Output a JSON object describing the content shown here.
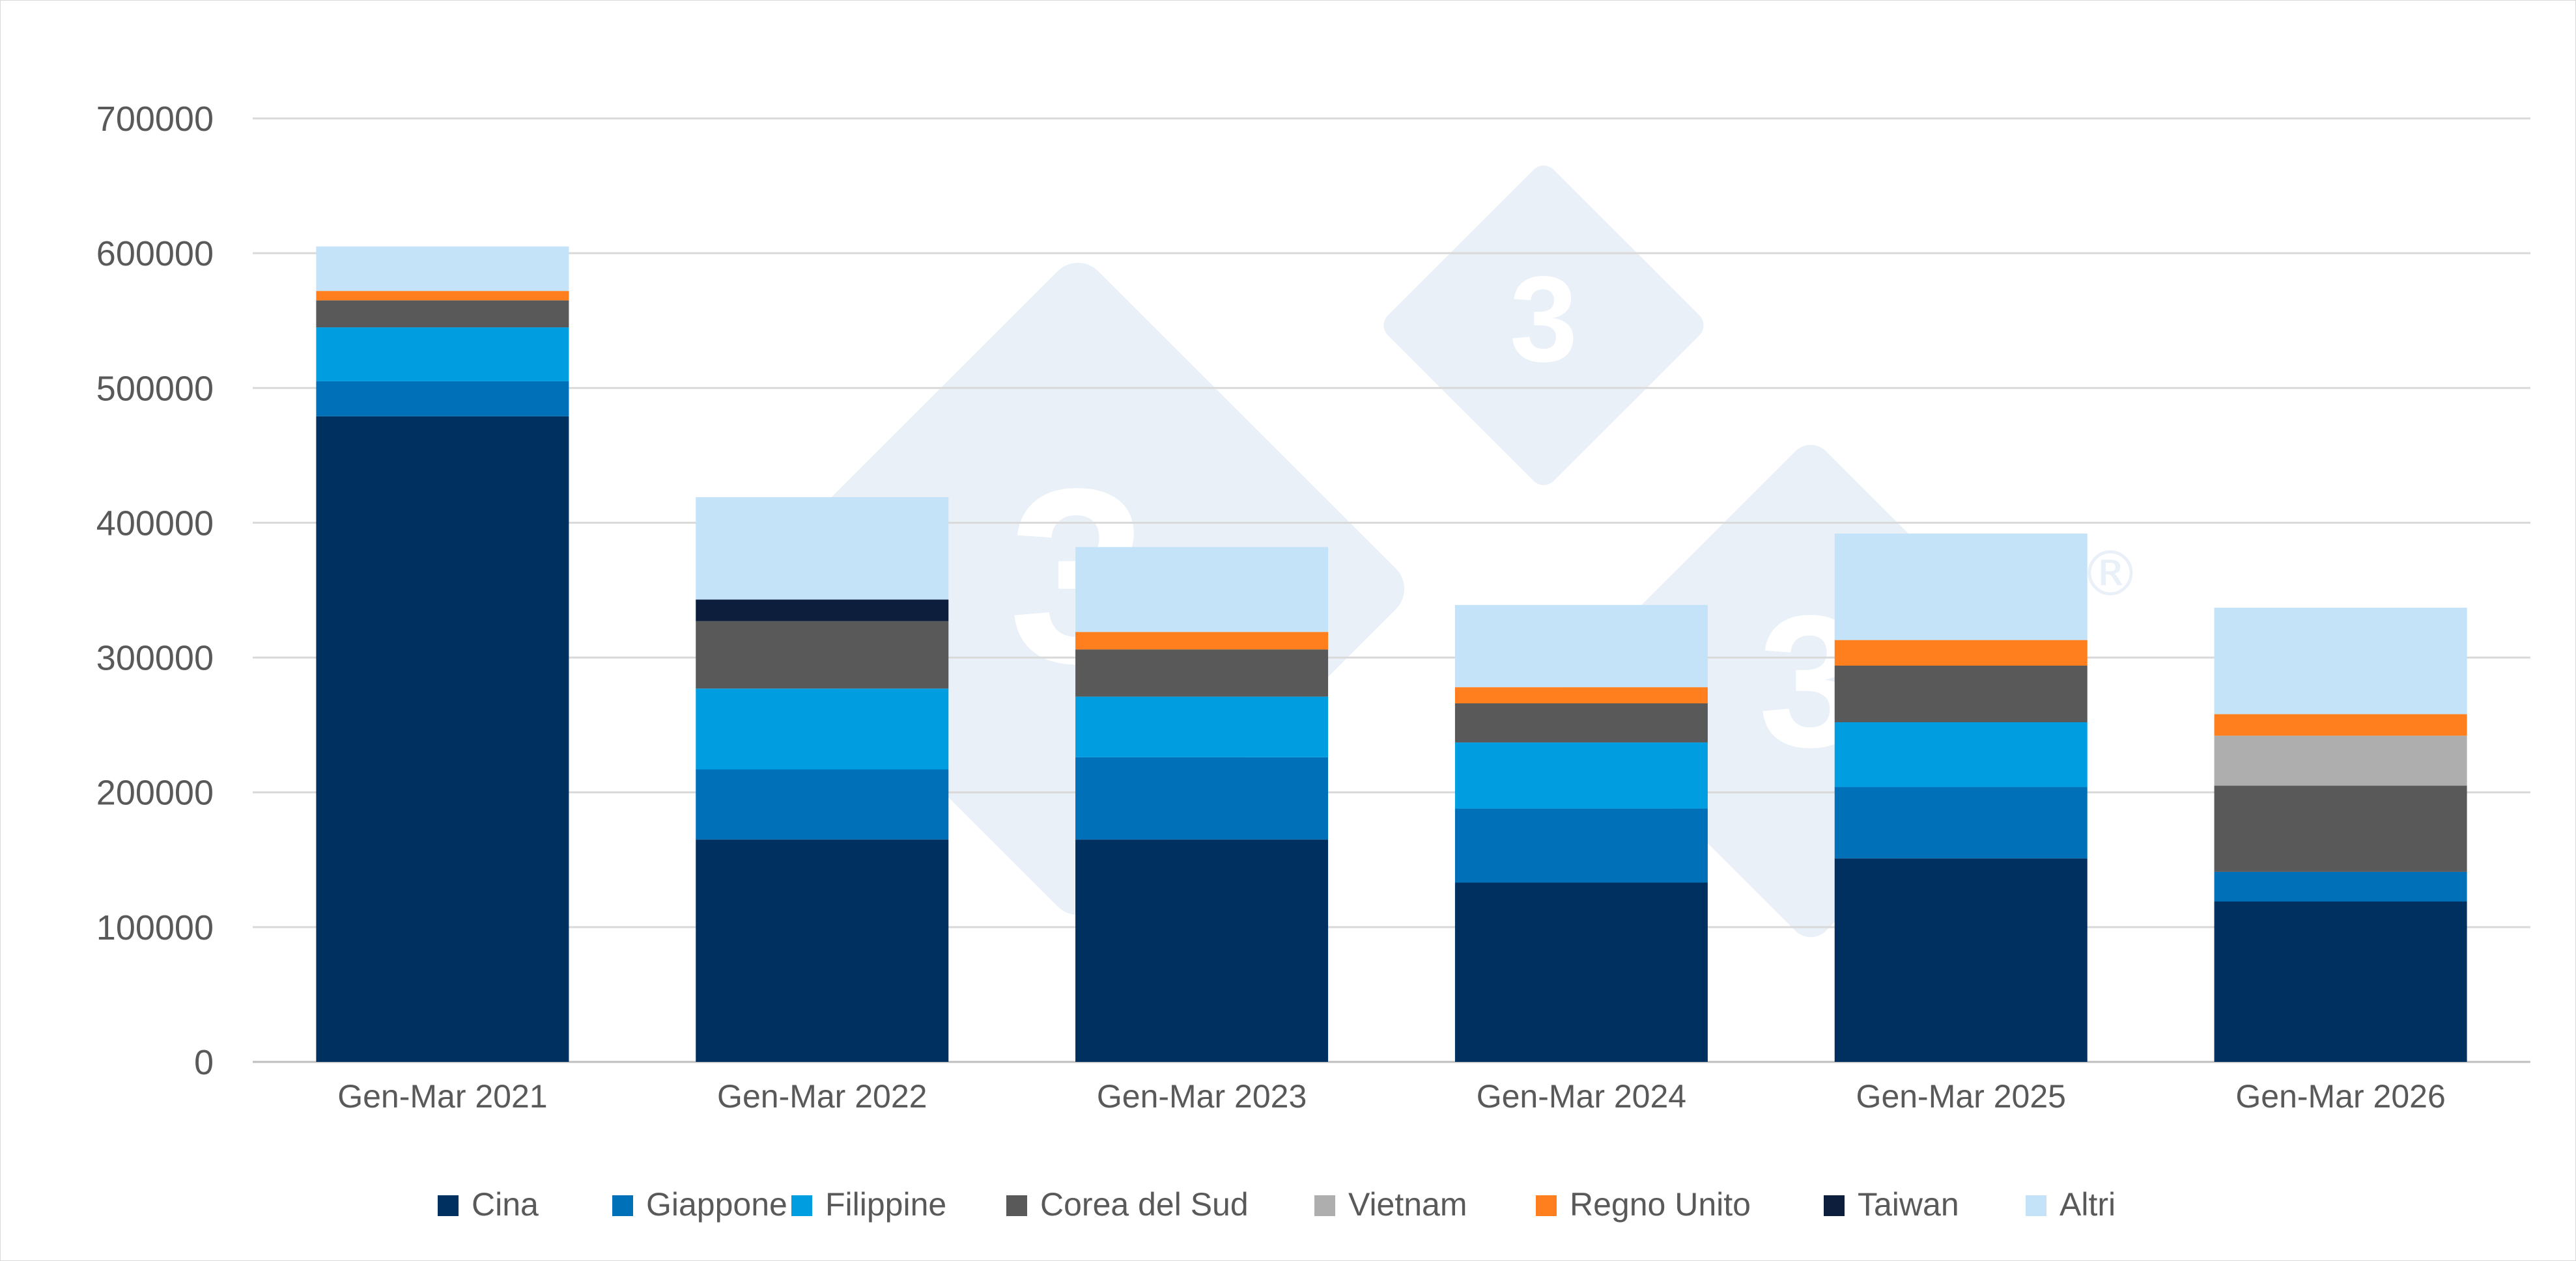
{
  "chart_data": {
    "type": "bar",
    "stacked": true,
    "title": "",
    "xlabel": "",
    "ylabel": "",
    "ylim": [
      0,
      700000
    ],
    "yticks": [
      0,
      100000,
      200000,
      300000,
      400000,
      500000,
      600000,
      700000
    ],
    "yticklabels": [
      "0",
      "100000",
      "200000",
      "300000",
      "400000",
      "500000",
      "600000",
      "700000"
    ],
    "grid": true,
    "legend_position": "bottom",
    "categories": [
      "Gen-Mar 2021",
      "Gen-Mar 2022",
      "Gen-Mar 2023",
      "Gen-Mar 2024",
      "Gen-Mar 2025",
      "Gen-Mar 2026"
    ],
    "series": [
      {
        "name": "Cina",
        "color": "#003060",
        "values": [
          479000,
          165000,
          165000,
          133000,
          151000,
          119000
        ]
      },
      {
        "name": "Giappone",
        "color": "#0070b8",
        "values": [
          26000,
          52000,
          61000,
          55000,
          53000,
          22000
        ]
      },
      {
        "name": "Filippine",
        "color": "#009ee0",
        "values": [
          40000,
          60000,
          45000,
          49000,
          48000,
          0
        ]
      },
      {
        "name": "Corea del Sud",
        "color": "#595959",
        "values": [
          20000,
          50000,
          35000,
          29000,
          42000,
          64000
        ]
      },
      {
        "name": "Vietnam",
        "color": "#aeaeae",
        "values": [
          0,
          0,
          0,
          0,
          0,
          37000
        ]
      },
      {
        "name": "Regno Unito",
        "color": "#ff7f1e",
        "values": [
          7000,
          0,
          13000,
          12000,
          19000,
          16000
        ]
      },
      {
        "name": "Taiwan",
        "color": "#0c1e3c",
        "values": [
          0,
          16000,
          0,
          0,
          0,
          0
        ]
      },
      {
        "name": "Altri",
        "color": "#c5e3f8",
        "values": [
          33000,
          76000,
          63000,
          61000,
          79000,
          79000
        ]
      }
    ]
  },
  "watermark": {
    "text": "3",
    "registered_mark": "®",
    "color": "#dbe6f4"
  }
}
